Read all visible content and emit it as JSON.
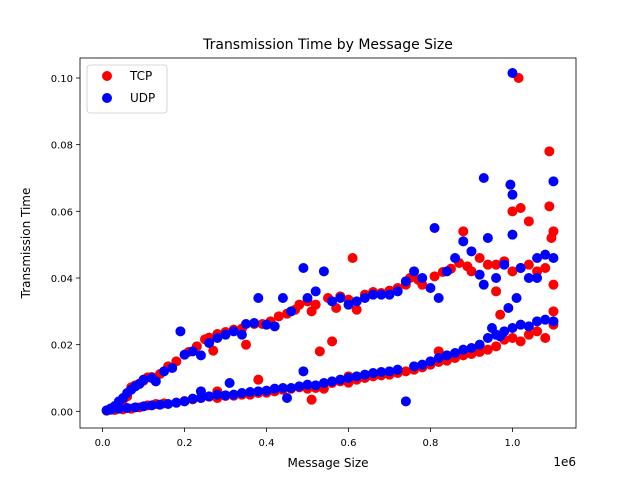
{
  "chart_data": {
    "type": "scatter",
    "title": "Transmission Time by Message Size",
    "xlabel": "Message Size",
    "ylabel": "Transmission Time",
    "x_offset_label": "1e6",
    "xlim": [
      -0.055,
      1.155
    ],
    "ylim": [
      -0.005,
      0.106
    ],
    "x_ticks": [
      0.0,
      0.2,
      0.4,
      0.6,
      0.8,
      1.0
    ],
    "x_tick_labels": [
      "0.0",
      "0.2",
      "0.4",
      "0.6",
      "0.8",
      "1.0"
    ],
    "y_ticks": [
      0.0,
      0.02,
      0.04,
      0.06,
      0.08,
      0.1
    ],
    "y_tick_labels": [
      "0.00",
      "0.02",
      "0.04",
      "0.06",
      "0.08",
      "0.10"
    ],
    "grid": false,
    "legend_position": "top-left",
    "series": [
      {
        "name": "TCP",
        "color": "#ff0000",
        "points": [
          [
            0.01,
            0.0002
          ],
          [
            0.02,
            0.0009
          ],
          [
            0.03,
            0.0013
          ],
          [
            0.04,
            0.0025
          ],
          [
            0.05,
            0.0035
          ],
          [
            0.06,
            0.0045
          ],
          [
            0.07,
            0.0072
          ],
          [
            0.08,
            0.0078
          ],
          [
            0.09,
            0.0083
          ],
          [
            0.1,
            0.0092
          ],
          [
            0.11,
            0.0102
          ],
          [
            0.12,
            0.0103
          ],
          [
            0.14,
            0.0112
          ],
          [
            0.16,
            0.0135
          ],
          [
            0.18,
            0.015
          ],
          [
            0.21,
            0.0178
          ],
          [
            0.23,
            0.0195
          ],
          [
            0.25,
            0.0216
          ],
          [
            0.26,
            0.0221
          ],
          [
            0.27,
            0.0182
          ],
          [
            0.28,
            0.0232
          ],
          [
            0.3,
            0.0238
          ],
          [
            0.32,
            0.0245
          ],
          [
            0.34,
            0.0248
          ],
          [
            0.35,
            0.02
          ],
          [
            0.37,
            0.0262
          ],
          [
            0.39,
            0.0262
          ],
          [
            0.41,
            0.027
          ],
          [
            0.43,
            0.0285
          ],
          [
            0.45,
            0.0293
          ],
          [
            0.47,
            0.0305
          ],
          [
            0.48,
            0.032
          ],
          [
            0.5,
            0.033
          ],
          [
            0.51,
            0.03
          ],
          [
            0.52,
            0.032
          ],
          [
            0.53,
            0.018
          ],
          [
            0.55,
            0.034
          ],
          [
            0.56,
            0.021
          ],
          [
            0.57,
            0.031
          ],
          [
            0.58,
            0.0345
          ],
          [
            0.6,
            0.0335
          ],
          [
            0.61,
            0.046
          ],
          [
            0.62,
            0.0305
          ],
          [
            0.64,
            0.035
          ],
          [
            0.66,
            0.0358
          ],
          [
            0.68,
            0.0355
          ],
          [
            0.7,
            0.0362
          ],
          [
            0.72,
            0.037
          ],
          [
            0.74,
            0.038
          ],
          [
            0.75,
            0.04
          ],
          [
            0.77,
            0.0395
          ],
          [
            0.78,
            0.038
          ],
          [
            0.81,
            0.0405
          ],
          [
            0.83,
            0.0418
          ],
          [
            0.85,
            0.0428
          ],
          [
            0.87,
            0.0445
          ],
          [
            0.89,
            0.0435
          ],
          [
            0.9,
            0.042
          ],
          [
            0.92,
            0.046
          ],
          [
            0.94,
            0.044
          ],
          [
            0.96,
            0.044
          ],
          [
            0.98,
            0.045
          ],
          [
            1.0,
            0.042
          ],
          [
            1.02,
            0.043
          ],
          [
            1.04,
            0.044
          ],
          [
            1.06,
            0.042
          ],
          [
            1.08,
            0.043
          ],
          [
            1.1,
            0.038
          ],
          [
            0.03,
            0.0004
          ],
          [
            0.05,
            0.0006
          ],
          [
            0.07,
            0.0008
          ],
          [
            0.09,
            0.0012
          ],
          [
            0.11,
            0.0018
          ],
          [
            0.13,
            0.0022
          ],
          [
            0.15,
            0.0024
          ],
          [
            0.18,
            0.0026
          ],
          [
            0.2,
            0.0031
          ],
          [
            0.22,
            0.0036
          ],
          [
            0.24,
            0.004
          ],
          [
            0.26,
            0.0044
          ],
          [
            0.28,
            0.004
          ],
          [
            0.3,
            0.0046
          ],
          [
            0.32,
            0.0047
          ],
          [
            0.34,
            0.005
          ],
          [
            0.36,
            0.005
          ],
          [
            0.38,
            0.0055
          ],
          [
            0.4,
            0.0056
          ],
          [
            0.42,
            0.006
          ],
          [
            0.44,
            0.0065
          ],
          [
            0.46,
            0.0068
          ],
          [
            0.48,
            0.0072
          ],
          [
            0.5,
            0.0068
          ],
          [
            0.52,
            0.007
          ],
          [
            0.54,
            0.0068
          ],
          [
            0.56,
            0.0085
          ],
          [
            0.58,
            0.009
          ],
          [
            0.6,
            0.0086
          ],
          [
            0.62,
            0.0095
          ],
          [
            0.64,
            0.01
          ],
          [
            0.66,
            0.0105
          ],
          [
            0.68,
            0.0108
          ],
          [
            0.7,
            0.011
          ],
          [
            0.72,
            0.0115
          ],
          [
            0.74,
            0.012
          ],
          [
            0.76,
            0.0125
          ],
          [
            0.78,
            0.0132
          ],
          [
            0.8,
            0.014
          ],
          [
            0.82,
            0.0148
          ],
          [
            0.84,
            0.0152
          ],
          [
            0.86,
            0.016
          ],
          [
            0.88,
            0.0168
          ],
          [
            0.9,
            0.0172
          ],
          [
            0.92,
            0.0178
          ],
          [
            0.94,
            0.0185
          ],
          [
            0.96,
            0.0195
          ],
          [
            0.98,
            0.0215
          ],
          [
            1.0,
            0.022
          ],
          [
            1.02,
            0.021
          ],
          [
            1.04,
            0.023
          ],
          [
            1.06,
            0.024
          ],
          [
            1.08,
            0.022
          ],
          [
            1.1,
            0.026
          ],
          [
            1.1,
            0.03
          ],
          [
            0.38,
            0.0095
          ],
          [
            0.28,
            0.006
          ],
          [
            0.51,
            0.0035
          ],
          [
            0.6,
            0.0105
          ],
          [
            0.82,
            0.018
          ],
          [
            0.98,
            0.045
          ],
          [
            1.0,
            0.06
          ],
          [
            1.02,
            0.061
          ],
          [
            1.04,
            0.057
          ],
          [
            1.09,
            0.078
          ],
          [
            1.09,
            0.0615
          ],
          [
            1.1,
            0.054
          ],
          [
            1.095,
            0.052
          ],
          [
            1.015,
            0.1
          ],
          [
            0.88,
            0.054
          ],
          [
            0.96,
            0.036
          ],
          [
            0.97,
            0.029
          ]
        ]
      },
      {
        "name": "UDP",
        "color": "#0000ff",
        "points": [
          [
            0.01,
            0.0003
          ],
          [
            0.02,
            0.0008
          ],
          [
            0.03,
            0.0016
          ],
          [
            0.04,
            0.003
          ],
          [
            0.05,
            0.004
          ],
          [
            0.06,
            0.0055
          ],
          [
            0.07,
            0.0065
          ],
          [
            0.08,
            0.0075
          ],
          [
            0.09,
            0.0082
          ],
          [
            0.1,
            0.0095
          ],
          [
            0.12,
            0.01
          ],
          [
            0.13,
            0.009
          ],
          [
            0.15,
            0.012
          ],
          [
            0.17,
            0.013
          ],
          [
            0.19,
            0.024
          ],
          [
            0.2,
            0.017
          ],
          [
            0.22,
            0.018
          ],
          [
            0.24,
            0.0168
          ],
          [
            0.26,
            0.0205
          ],
          [
            0.28,
            0.022
          ],
          [
            0.3,
            0.023
          ],
          [
            0.32,
            0.024
          ],
          [
            0.34,
            0.023
          ],
          [
            0.35,
            0.0262
          ],
          [
            0.37,
            0.0265
          ],
          [
            0.38,
            0.034
          ],
          [
            0.4,
            0.026
          ],
          [
            0.42,
            0.0255
          ],
          [
            0.44,
            0.034
          ],
          [
            0.46,
            0.03
          ],
          [
            0.49,
            0.043
          ],
          [
            0.5,
            0.034
          ],
          [
            0.52,
            0.036
          ],
          [
            0.54,
            0.042
          ],
          [
            0.56,
            0.033
          ],
          [
            0.58,
            0.034
          ],
          [
            0.6,
            0.032
          ],
          [
            0.62,
            0.033
          ],
          [
            0.64,
            0.034
          ],
          [
            0.66,
            0.035
          ],
          [
            0.68,
            0.035
          ],
          [
            0.7,
            0.035
          ],
          [
            0.72,
            0.036
          ],
          [
            0.74,
            0.039
          ],
          [
            0.76,
            0.042
          ],
          [
            0.78,
            0.04
          ],
          [
            0.8,
            0.037
          ],
          [
            0.81,
            0.055
          ],
          [
            0.82,
            0.034
          ],
          [
            0.84,
            0.042
          ],
          [
            0.86,
            0.046
          ],
          [
            0.88,
            0.051
          ],
          [
            0.9,
            0.048
          ],
          [
            0.92,
            0.041
          ],
          [
            0.93,
            0.07
          ],
          [
            0.94,
            0.052
          ],
          [
            0.96,
            0.04
          ],
          [
            0.98,
            0.044
          ],
          [
            1.0,
            0.053
          ],
          [
            0.995,
            0.068
          ],
          [
            1.0,
            0.065
          ],
          [
            1.02,
            0.043
          ],
          [
            1.04,
            0.04
          ],
          [
            1.06,
            0.046
          ],
          [
            1.08,
            0.047
          ],
          [
            1.1,
            0.046
          ],
          [
            1.1,
            0.069
          ],
          [
            0.02,
            0.0005
          ],
          [
            0.04,
            0.0008
          ],
          [
            0.06,
            0.001
          ],
          [
            0.08,
            0.0012
          ],
          [
            0.1,
            0.0015
          ],
          [
            0.12,
            0.0018
          ],
          [
            0.14,
            0.002
          ],
          [
            0.16,
            0.0022
          ],
          [
            0.18,
            0.0026
          ],
          [
            0.2,
            0.003
          ],
          [
            0.22,
            0.0038
          ],
          [
            0.24,
            0.004
          ],
          [
            0.26,
            0.0045
          ],
          [
            0.28,
            0.005
          ],
          [
            0.3,
            0.0048
          ],
          [
            0.32,
            0.005
          ],
          [
            0.34,
            0.0055
          ],
          [
            0.36,
            0.0058
          ],
          [
            0.38,
            0.006
          ],
          [
            0.4,
            0.0062
          ],
          [
            0.42,
            0.0068
          ],
          [
            0.44,
            0.007
          ],
          [
            0.46,
            0.007
          ],
          [
            0.48,
            0.0075
          ],
          [
            0.5,
            0.008
          ],
          [
            0.52,
            0.0078
          ],
          [
            0.54,
            0.0085
          ],
          [
            0.56,
            0.009
          ],
          [
            0.58,
            0.0095
          ],
          [
            0.6,
            0.01
          ],
          [
            0.62,
            0.0105
          ],
          [
            0.64,
            0.011
          ],
          [
            0.66,
            0.0115
          ],
          [
            0.68,
            0.0118
          ],
          [
            0.7,
            0.012
          ],
          [
            0.72,
            0.0125
          ],
          [
            0.74,
            0.003
          ],
          [
            0.76,
            0.0135
          ],
          [
            0.78,
            0.014
          ],
          [
            0.8,
            0.015
          ],
          [
            0.82,
            0.016
          ],
          [
            0.84,
            0.0168
          ],
          [
            0.86,
            0.0175
          ],
          [
            0.88,
            0.0185
          ],
          [
            0.9,
            0.019
          ],
          [
            0.92,
            0.02
          ],
          [
            0.94,
            0.022
          ],
          [
            0.96,
            0.023
          ],
          [
            0.98,
            0.024
          ],
          [
            1.0,
            0.025
          ],
          [
            1.02,
            0.026
          ],
          [
            1.04,
            0.0255
          ],
          [
            1.06,
            0.027
          ],
          [
            1.08,
            0.0275
          ],
          [
            1.1,
            0.027
          ],
          [
            0.24,
            0.006
          ],
          [
            0.31,
            0.0085
          ],
          [
            0.45,
            0.004
          ],
          [
            0.49,
            0.012
          ],
          [
            0.93,
            0.038
          ],
          [
            0.95,
            0.025
          ],
          [
            1.0,
            0.1015
          ],
          [
            1.01,
            0.034
          ],
          [
            1.06,
            0.04
          ],
          [
            0.97,
            0.0225
          ],
          [
            0.99,
            0.031
          ]
        ]
      }
    ]
  }
}
